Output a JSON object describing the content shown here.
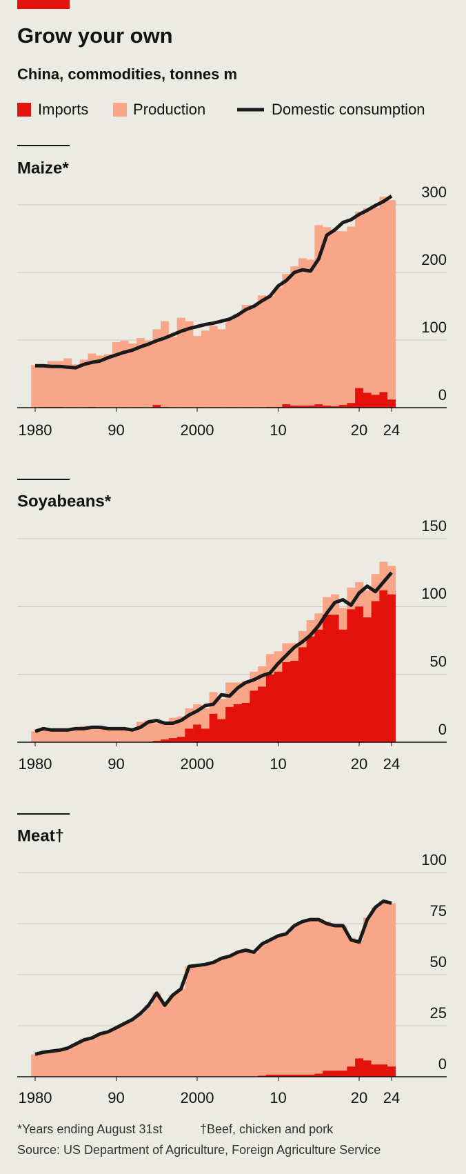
{
  "title": "Grow your own",
  "subtitle": "China, commodities, tonnes m",
  "notes": [
    "*Years ending August 31st",
    "†Beef, chicken and pork"
  ],
  "source": "Source: US Department of Agriculture, Foreign Agriculture Service",
  "chart_data": [
    {
      "type": "bar",
      "title": "Maize*",
      "x": [
        1980,
        1981,
        1982,
        1983,
        1984,
        1985,
        1986,
        1987,
        1988,
        1989,
        1990,
        1991,
        1992,
        1993,
        1994,
        1995,
        1996,
        1997,
        1998,
        1999,
        2000,
        2001,
        2002,
        2003,
        2004,
        2005,
        2006,
        2007,
        2008,
        2009,
        2010,
        2011,
        2012,
        2013,
        2014,
        2015,
        2016,
        2017,
        2018,
        2019,
        2020,
        2021,
        2022,
        2023,
        2024
      ],
      "xlim": [
        1980,
        2024
      ],
      "xticks": [
        1980,
        {
          "value": 1990,
          "label": "90"
        },
        2000,
        {
          "value": 2010,
          "label": "10"
        },
        {
          "value": 2020,
          "label": "20"
        },
        {
          "value": 2024,
          "label": "24"
        }
      ],
      "ylim": [
        0,
        300
      ],
      "yticks": [
        0,
        100,
        200,
        300
      ],
      "grid": true,
      "series": [
        {
          "name": "Imports",
          "color": "#e3120b",
          "values": [
            0,
            1,
            1,
            1,
            0,
            0,
            0,
            1,
            0,
            0,
            0,
            0,
            0,
            0,
            0,
            4,
            1,
            0,
            0,
            0,
            0,
            0,
            0,
            0,
            0,
            0,
            0,
            0,
            0,
            1,
            1,
            5,
            3,
            3,
            3,
            5,
            3,
            2,
            4,
            7,
            29,
            22,
            19,
            23,
            12
          ]
        },
        {
          "name": "Production",
          "color": "#f9a688",
          "values": [
            63,
            60,
            68,
            68,
            73,
            64,
            71,
            79,
            77,
            79,
            97,
            99,
            95,
            103,
            99,
            112,
            127,
            105,
            133,
            128,
            106,
            114,
            121,
            116,
            130,
            139,
            152,
            152,
            166,
            164,
            177,
            193,
            206,
            218,
            216,
            265,
            264,
            259,
            257,
            261,
            261,
            273,
            277,
            289,
            295
          ]
        },
        {
          "name": "Domestic consumption",
          "color": "#1a1a1a",
          "values": [
            62,
            62,
            61,
            61,
            60,
            59,
            64,
            67,
            69,
            74,
            78,
            82,
            85,
            90,
            94,
            99,
            103,
            108,
            113,
            117,
            120,
            123,
            125,
            128,
            131,
            137,
            145,
            150,
            158,
            165,
            180,
            188,
            200,
            204,
            202,
            220,
            255,
            263,
            274,
            278,
            286,
            292,
            299,
            305,
            313
          ]
        }
      ]
    },
    {
      "type": "bar",
      "title": "Soyabeans*",
      "x": [
        1980,
        1981,
        1982,
        1983,
        1984,
        1985,
        1986,
        1987,
        1988,
        1989,
        1990,
        1991,
        1992,
        1993,
        1994,
        1995,
        1996,
        1997,
        1998,
        1999,
        2000,
        2001,
        2002,
        2003,
        2004,
        2005,
        2006,
        2007,
        2008,
        2009,
        2010,
        2011,
        2012,
        2013,
        2014,
        2015,
        2016,
        2017,
        2018,
        2019,
        2020,
        2021,
        2022,
        2023,
        2024
      ],
      "xlim": [
        1980,
        2024
      ],
      "xticks": [
        1980,
        {
          "value": 1990,
          "label": "90"
        },
        2000,
        {
          "value": 2010,
          "label": "10"
        },
        {
          "value": 2020,
          "label": "20"
        },
        {
          "value": 2024,
          "label": "24"
        }
      ],
      "ylim": [
        0,
        150
      ],
      "yticks": [
        0,
        50,
        100,
        150
      ],
      "grid": true,
      "series": [
        {
          "color": "#e3120b",
          "values": [
            0,
            0,
            0,
            0,
            0,
            0,
            0,
            0,
            0,
            0,
            0,
            0,
            0,
            0,
            0,
            1,
            2,
            3,
            4,
            10,
            13,
            10,
            21,
            17,
            26,
            28,
            29,
            38,
            41,
            50,
            52,
            59,
            60,
            70,
            78,
            83,
            94,
            94,
            83,
            98,
            100,
            92,
            104,
            112,
            109
          ]
        },
        {
          "color": "#f9a688",
          "values": [
            8,
            9,
            9,
            10,
            10,
            11,
            12,
            12,
            11,
            10,
            11,
            10,
            10,
            15,
            16,
            13,
            13,
            15,
            15,
            15,
            15,
            15,
            16,
            15,
            18,
            16,
            16,
            14,
            15,
            15,
            15,
            14,
            13,
            12,
            12,
            12,
            13,
            15,
            16,
            16,
            18,
            20,
            20,
            21,
            21
          ]
        },
        {
          "color": "#1a1a1a",
          "values": [
            8,
            10,
            9,
            9,
            9,
            10,
            10,
            11,
            11,
            10,
            10,
            10,
            9,
            11,
            15,
            16,
            14,
            14,
            16,
            20,
            23,
            27,
            28,
            35,
            34,
            40,
            44,
            46,
            49,
            51,
            58,
            64,
            70,
            74,
            79,
            86,
            95,
            103,
            105,
            101,
            110,
            115,
            111,
            118,
            125
          ]
        }
      ]
    },
    {
      "type": "bar",
      "title": "Meat†",
      "x": [
        1980,
        1981,
        1982,
        1983,
        1984,
        1985,
        1986,
        1987,
        1988,
        1989,
        1990,
        1991,
        1992,
        1993,
        1994,
        1995,
        1996,
        1997,
        1998,
        1999,
        2000,
        2001,
        2002,
        2003,
        2004,
        2005,
        2006,
        2007,
        2008,
        2009,
        2010,
        2011,
        2012,
        2013,
        2014,
        2015,
        2016,
        2017,
        2018,
        2019,
        2020,
        2021,
        2022,
        2023,
        2024
      ],
      "xlim": [
        1980,
        2024
      ],
      "xticks": [
        1980,
        {
          "value": 1990,
          "label": "90"
        },
        2000,
        {
          "value": 2010,
          "label": "10"
        },
        {
          "value": 2020,
          "label": "20"
        },
        {
          "value": 2024,
          "label": "24"
        }
      ],
      "ylim": [
        0,
        100
      ],
      "yticks": [
        0,
        25,
        50,
        75,
        100
      ],
      "grid": true,
      "series": [
        {
          "color": "#e3120b",
          "values": [
            0,
            0,
            0,
            0,
            0,
            0,
            0,
            0,
            0,
            0,
            0,
            0,
            0,
            0,
            0,
            0,
            0,
            0,
            0,
            0,
            0,
            0,
            0,
            0,
            0,
            0,
            0,
            0,
            0.5,
            1,
            1,
            1,
            1,
            1,
            1,
            1.5,
            3,
            3,
            3,
            5,
            9,
            8,
            6,
            6,
            5
          ]
        },
        {
          "color": "#f9a688",
          "values": [
            11,
            12,
            12.5,
            13,
            14,
            16,
            18,
            19,
            21,
            22,
            24,
            26,
            28,
            31,
            35,
            41,
            36,
            40,
            43,
            54,
            55,
            55,
            56,
            58,
            59,
            61,
            62,
            61,
            64,
            66,
            68,
            69,
            73,
            75,
            76,
            76,
            73,
            71,
            71,
            63,
            58,
            70,
            77,
            80,
            80
          ]
        },
        {
          "color": "#1a1a1a",
          "values": [
            11,
            12,
            12.5,
            13,
            14,
            16,
            18,
            19,
            21,
            22,
            24,
            26,
            28,
            31,
            35,
            41,
            35,
            40,
            43,
            54,
            54.5,
            55,
            56,
            58,
            59,
            61,
            62,
            61,
            65,
            67,
            69,
            70,
            74,
            76,
            77,
            77,
            75,
            74,
            74,
            67,
            66,
            77,
            83,
            86,
            85
          ]
        }
      ]
    }
  ]
}
